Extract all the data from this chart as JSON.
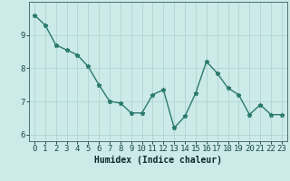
{
  "x": [
    0,
    1,
    2,
    3,
    4,
    5,
    6,
    7,
    8,
    9,
    10,
    11,
    12,
    13,
    14,
    15,
    16,
    17,
    18,
    19,
    20,
    21,
    22,
    23
  ],
  "y": [
    9.6,
    9.3,
    8.7,
    8.55,
    8.4,
    8.05,
    7.5,
    7.0,
    6.95,
    6.65,
    6.65,
    7.2,
    7.35,
    6.2,
    6.55,
    7.25,
    8.2,
    7.85,
    7.4,
    7.2,
    6.6,
    6.9,
    6.6,
    6.6
  ],
  "xlabel": "Humidex (Indice chaleur)",
  "ylim": [
    5.8,
    10.0
  ],
  "xlim": [
    -0.5,
    23.5
  ],
  "yticks": [
    6,
    7,
    8,
    9
  ],
  "xticks": [
    0,
    1,
    2,
    3,
    4,
    5,
    6,
    7,
    8,
    9,
    10,
    11,
    12,
    13,
    14,
    15,
    16,
    17,
    18,
    19,
    20,
    21,
    22,
    23
  ],
  "line_color": "#2a7a6e",
  "marker": "*",
  "bg_color": "#cceae8",
  "grid_color": "#b0d5d2",
  "axis_color": "#4a7070",
  "tick_label_color": "#1a4a4a",
  "xlabel_color": "#0a2a2a",
  "xlabel_fontsize": 7,
  "tick_fontsize": 6.5,
  "linewidth": 1.0,
  "markersize": 3.5
}
